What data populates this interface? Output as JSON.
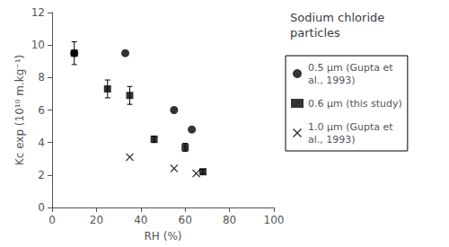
{
  "chart_data": {
    "type": "scatter",
    "title": "Sodium chloride\nparticles",
    "xlabel": "RH (%)",
    "ylabel": "Kc exp (10¹⁰ m.kg⁻¹)",
    "xlim": [
      0,
      100
    ],
    "ylim": [
      0,
      12
    ],
    "xticks": [
      0,
      20,
      40,
      60,
      80,
      100
    ],
    "yticks": [
      0,
      2,
      4,
      6,
      8,
      10,
      12
    ],
    "grid": false,
    "legend": "right",
    "series": [
      {
        "name": "0.5 μm (Gupta et\nal., 1993)",
        "color": "#000000",
        "marker": "circle",
        "x": [
          10,
          33,
          55,
          63
        ],
        "values": [
          9.5,
          9.5,
          6.0,
          4.8
        ]
      },
      {
        "name": "0.6 μm (this study)",
        "color": "#000000",
        "marker": "square",
        "x": [
          10,
          25,
          35,
          46,
          60,
          68
        ],
        "values": [
          9.5,
          7.3,
          6.9,
          4.2,
          3.7,
          2.2
        ],
        "yerr": [
          0.7,
          0.55,
          0.55,
          0.2,
          0.25,
          0.15
        ]
      },
      {
        "name": "1.0 μm (Gupta et\nal., 1993)",
        "color": "#000000",
        "marker": "cross",
        "x": [
          35,
          55,
          65
        ],
        "values": [
          3.1,
          2.4,
          2.1
        ]
      }
    ]
  }
}
